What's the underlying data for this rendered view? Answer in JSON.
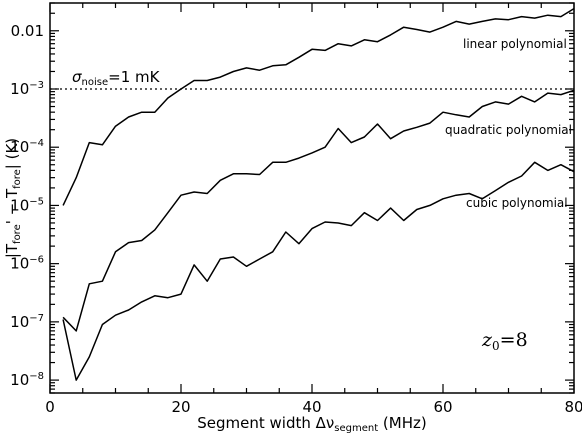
{
  "chart_data": {
    "type": "line",
    "xlabel": "Segment width Δν",
    "xlabel_sub": "segment",
    "xlabel_unit": " (MHz)",
    "ylabel_parts": [
      "|T",
      "fore",
      "' − T",
      "fore",
      "| (K)"
    ],
    "xlim": [
      0,
      80
    ],
    "ylim": [
      6e-09,
      0.03
    ],
    "yscale": "log",
    "x_ticks": [
      0,
      20,
      40,
      60,
      80
    ],
    "y_ticks": [
      {
        "value": 1e-08,
        "base": "10",
        "exp": "−8"
      },
      {
        "value": 1e-07,
        "base": "10",
        "exp": "−7"
      },
      {
        "value": 1e-06,
        "base": "10",
        "exp": "−6"
      },
      {
        "value": 1e-05,
        "base": "10",
        "exp": "−5"
      },
      {
        "value": 0.0001,
        "base": "10",
        "exp": "−4"
      },
      {
        "value": 0.001,
        "base": "10",
        "exp": "−3"
      },
      {
        "value": 0.01,
        "label": "0.01"
      }
    ],
    "noise_level": {
      "value": 0.001,
      "label_sigma": "σ",
      "label_sub": "noise",
      "label_rest": "=1 mK"
    },
    "redshift_label": {
      "symbol": "z",
      "sub": "0",
      "rest": "=8"
    },
    "series": [
      {
        "name": "linear polynomial",
        "x": [
          2,
          4,
          6,
          8,
          10,
          12,
          14,
          16,
          18,
          20,
          22,
          24,
          26,
          28,
          30,
          32,
          34,
          36,
          38,
          40,
          42,
          44,
          46,
          48,
          50,
          52,
          54,
          56,
          58,
          60,
          62,
          64,
          66,
          68,
          70,
          72,
          74,
          76,
          78,
          80
        ],
        "values": [
          1e-05,
          3e-05,
          0.00012,
          0.00011,
          0.00023,
          0.00033,
          0.0004,
          0.0004,
          0.0007,
          0.001,
          0.0014,
          0.0014,
          0.0016,
          0.002,
          0.0023,
          0.0021,
          0.0025,
          0.0026,
          0.0035,
          0.0048,
          0.0046,
          0.006,
          0.0055,
          0.007,
          0.0065,
          0.0085,
          0.0115,
          0.0105,
          0.0095,
          0.0115,
          0.0145,
          0.013,
          0.0145,
          0.016,
          0.0155,
          0.0175,
          0.0165,
          0.0185,
          0.0175,
          0.024
        ]
      },
      {
        "name": "quadratic polynomial",
        "x": [
          2,
          4,
          6,
          8,
          10,
          12,
          14,
          16,
          18,
          20,
          22,
          24,
          26,
          28,
          30,
          32,
          34,
          36,
          38,
          40,
          42,
          44,
          46,
          48,
          50,
          52,
          54,
          56,
          58,
          60,
          62,
          64,
          66,
          68,
          70,
          72,
          74,
          76,
          78,
          80
        ],
        "values": [
          1.2e-07,
          7e-08,
          4.5e-07,
          5e-07,
          1.6e-06,
          2.3e-06,
          2.5e-06,
          3.8e-06,
          7.5e-06,
          1.5e-05,
          1.7e-05,
          1.6e-05,
          2.7e-05,
          3.5e-05,
          3.5e-05,
          3.4e-05,
          5.5e-05,
          5.5e-05,
          6.5e-05,
          8e-05,
          0.0001,
          0.00021,
          0.00012,
          0.00015,
          0.00025,
          0.00014,
          0.00019,
          0.00022,
          0.00026,
          0.0004,
          0.00036,
          0.00033,
          0.0005,
          0.0006,
          0.00055,
          0.00075,
          0.0006,
          0.00085,
          0.0008,
          0.00095
        ]
      },
      {
        "name": "cubic polynomial",
        "x": [
          2,
          4,
          6,
          8,
          10,
          12,
          14,
          16,
          18,
          20,
          22,
          24,
          26,
          28,
          30,
          32,
          34,
          36,
          38,
          40,
          42,
          44,
          46,
          48,
          50,
          52,
          54,
          56,
          58,
          60,
          62,
          64,
          66,
          68,
          70,
          72,
          74,
          76,
          78,
          80
        ],
        "values": [
          1.1e-07,
          1e-08,
          2.5e-08,
          9e-08,
          1.3e-07,
          1.6e-07,
          2.2e-07,
          2.8e-07,
          2.6e-07,
          3e-07,
          9.5e-07,
          5e-07,
          1.2e-06,
          1.3e-06,
          9e-07,
          1.2e-06,
          1.6e-06,
          3.5e-06,
          2.2e-06,
          4e-06,
          5.2e-06,
          5e-06,
          4.5e-06,
          7.5e-06,
          5.5e-06,
          9e-06,
          5.5e-06,
          8.5e-06,
          1e-05,
          1.3e-05,
          1.5e-05,
          1.6e-05,
          1.3e-05,
          1.8e-05,
          2.5e-05,
          3.2e-05,
          5.5e-05,
          4e-05,
          5e-05,
          3.8e-05
        ]
      }
    ]
  }
}
